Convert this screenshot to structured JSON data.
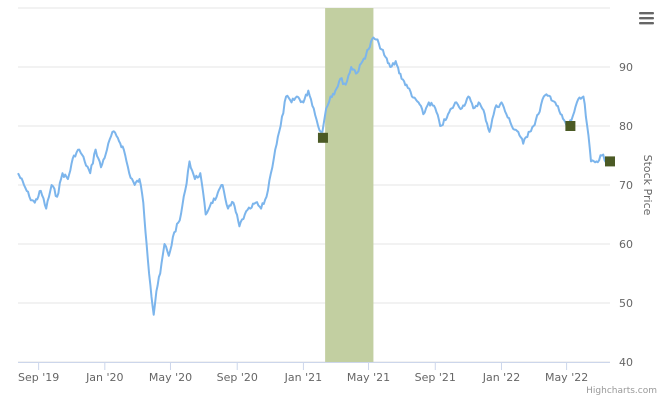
{
  "chart_data": {
    "type": "line",
    "title": "",
    "xlabel": "",
    "ylabel": "Stock Price",
    "ylim": [
      40,
      100
    ],
    "y_axis_side": "right",
    "grid": "horizontal",
    "legend": "none",
    "y_ticks": [
      40,
      50,
      60,
      70,
      80,
      90
    ],
    "x_ticks": [
      {
        "date": "2019-09-01",
        "label": "Sep '19"
      },
      {
        "date": "2020-01-01",
        "label": "Jan '20"
      },
      {
        "date": "2020-05-01",
        "label": "May '20"
      },
      {
        "date": "2020-09-01",
        "label": "Sep '20"
      },
      {
        "date": "2021-01-01",
        "label": "Jan '21"
      },
      {
        "date": "2021-05-01",
        "label": "May '21"
      },
      {
        "date": "2021-09-01",
        "label": "Sep '21"
      },
      {
        "date": "2022-01-01",
        "label": "Jan '22"
      },
      {
        "date": "2022-05-01",
        "label": "May '22"
      }
    ],
    "x_range": [
      "2019-07-25",
      "2022-07-20"
    ],
    "highlight_band": {
      "from": "2021-02-10",
      "to": "2021-05-10",
      "color": "#c2cfa1"
    },
    "series": [
      {
        "color": "#7cb5ec",
        "points": [
          [
            "2019-07-25",
            72
          ],
          [
            "2019-08-05",
            70
          ],
          [
            "2019-08-15",
            68
          ],
          [
            "2019-08-25",
            67
          ],
          [
            "2019-09-05",
            69
          ],
          [
            "2019-09-15",
            66
          ],
          [
            "2019-09-25",
            70
          ],
          [
            "2019-10-05",
            68
          ],
          [
            "2019-10-15",
            72
          ],
          [
            "2019-10-25",
            71
          ],
          [
            "2019-11-05",
            75
          ],
          [
            "2019-11-15",
            76
          ],
          [
            "2019-11-25",
            74
          ],
          [
            "2019-12-05",
            72
          ],
          [
            "2019-12-15",
            76
          ],
          [
            "2019-12-25",
            73
          ],
          [
            "2020-01-05",
            76
          ],
          [
            "2020-01-15",
            79
          ],
          [
            "2020-01-25",
            78
          ],
          [
            "2020-02-05",
            76
          ],
          [
            "2020-02-15",
            72
          ],
          [
            "2020-02-25",
            70
          ],
          [
            "2020-03-05",
            71
          ],
          [
            "2020-03-12",
            67
          ],
          [
            "2020-03-18",
            60
          ],
          [
            "2020-03-25",
            53
          ],
          [
            "2020-03-31",
            48
          ],
          [
            "2020-04-05",
            52
          ],
          [
            "2020-04-12",
            55
          ],
          [
            "2020-04-20",
            60
          ],
          [
            "2020-04-28",
            58
          ],
          [
            "2020-05-08",
            62
          ],
          [
            "2020-05-18",
            64
          ],
          [
            "2020-05-28",
            69
          ],
          [
            "2020-06-05",
            74
          ],
          [
            "2020-06-15",
            71
          ],
          [
            "2020-06-25",
            72
          ],
          [
            "2020-07-05",
            65
          ],
          [
            "2020-07-15",
            67
          ],
          [
            "2020-07-25",
            68
          ],
          [
            "2020-08-05",
            70
          ],
          [
            "2020-08-15",
            66
          ],
          [
            "2020-08-25",
            67
          ],
          [
            "2020-09-05",
            63
          ],
          [
            "2020-09-15",
            65
          ],
          [
            "2020-09-25",
            66
          ],
          [
            "2020-10-05",
            67
          ],
          [
            "2020-10-15",
            66
          ],
          [
            "2020-10-25",
            68
          ],
          [
            "2020-11-02",
            72
          ],
          [
            "2020-11-10",
            76
          ],
          [
            "2020-11-20",
            80
          ],
          [
            "2020-11-30",
            85
          ],
          [
            "2020-12-10",
            84
          ],
          [
            "2020-12-20",
            85
          ],
          [
            "2021-01-01",
            84
          ],
          [
            "2021-01-10",
            86
          ],
          [
            "2021-01-20",
            83
          ],
          [
            "2021-01-28",
            80
          ],
          [
            "2021-02-05",
            79
          ],
          [
            "2021-02-12",
            83
          ],
          [
            "2021-02-20",
            85
          ],
          [
            "2021-03-01",
            86
          ],
          [
            "2021-03-10",
            88
          ],
          [
            "2021-03-20",
            87
          ],
          [
            "2021-03-30",
            90
          ],
          [
            "2021-04-10",
            89
          ],
          [
            "2021-04-20",
            91
          ],
          [
            "2021-05-01",
            93
          ],
          [
            "2021-05-10",
            95
          ],
          [
            "2021-05-20",
            94
          ],
          [
            "2021-05-30",
            92
          ],
          [
            "2021-06-10",
            90
          ],
          [
            "2021-06-20",
            91
          ],
          [
            "2021-07-01",
            88
          ],
          [
            "2021-07-10",
            87
          ],
          [
            "2021-07-20",
            85
          ],
          [
            "2021-08-01",
            84
          ],
          [
            "2021-08-10",
            82
          ],
          [
            "2021-08-20",
            84
          ],
          [
            "2021-09-01",
            83
          ],
          [
            "2021-09-10",
            80
          ],
          [
            "2021-09-20",
            81
          ],
          [
            "2021-10-01",
            83
          ],
          [
            "2021-10-10",
            84
          ],
          [
            "2021-10-20",
            83
          ],
          [
            "2021-11-01",
            85
          ],
          [
            "2021-11-10",
            83
          ],
          [
            "2021-11-20",
            84
          ],
          [
            "2021-12-01",
            82
          ],
          [
            "2021-12-10",
            79
          ],
          [
            "2021-12-20",
            83
          ],
          [
            "2022-01-01",
            84
          ],
          [
            "2022-01-10",
            82
          ],
          [
            "2022-01-20",
            80
          ],
          [
            "2022-02-01",
            79
          ],
          [
            "2022-02-10",
            77
          ],
          [
            "2022-02-20",
            79
          ],
          [
            "2022-03-01",
            80
          ],
          [
            "2022-03-10",
            82
          ],
          [
            "2022-03-20",
            85
          ],
          [
            "2022-04-01",
            85
          ],
          [
            "2022-04-10",
            84
          ],
          [
            "2022-04-20",
            82
          ],
          [
            "2022-05-01",
            80
          ],
          [
            "2022-05-10",
            81
          ],
          [
            "2022-05-20",
            84
          ],
          [
            "2022-06-01",
            85
          ],
          [
            "2022-06-08",
            80
          ],
          [
            "2022-06-15",
            74
          ],
          [
            "2022-06-25",
            74
          ],
          [
            "2022-07-05",
            75
          ],
          [
            "2022-07-15",
            74
          ]
        ]
      }
    ],
    "markers": [
      {
        "date": "2021-02-06",
        "value": 78,
        "color": "#4b5a25"
      },
      {
        "date": "2022-05-08",
        "value": 80,
        "color": "#4b5a25"
      },
      {
        "date": "2022-07-20",
        "value": 74,
        "color": "#4b5a25"
      }
    ]
  },
  "menu_icon": "hamburger-menu-icon",
  "credits": "Highcharts.com"
}
